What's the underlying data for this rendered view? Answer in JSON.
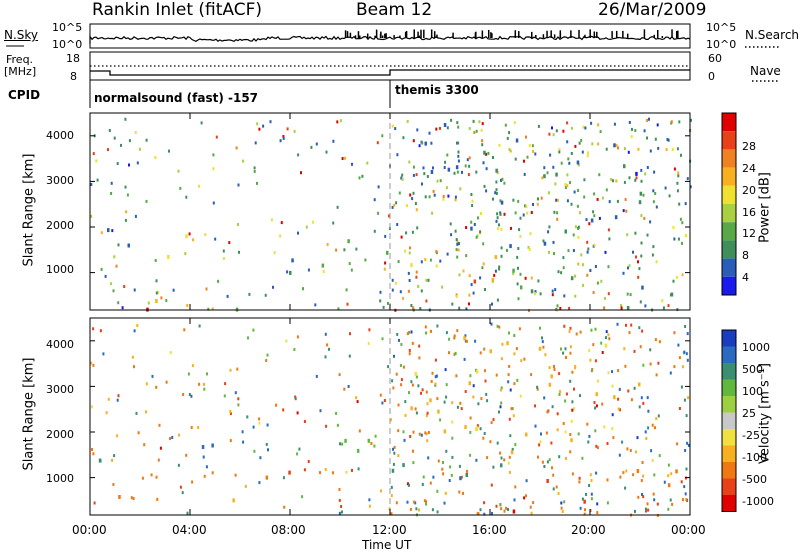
{
  "header": {
    "site": "Rankin Inlet (fitACF)",
    "beam": "Beam 12",
    "date": "26/Mar/2009"
  },
  "panels": {
    "nsky": {
      "left_label": "N.Sky",
      "right_label": "N.Search",
      "left_ticks": [
        "10^5",
        "10^0"
      ],
      "right_ticks": [
        "10^5",
        "10^0"
      ]
    },
    "freq": {
      "left_label_1": "Freq.",
      "left_label_2": "[MHz]",
      "right_label": "Nave",
      "left_ticks": [
        "18",
        "8"
      ],
      "right_ticks": [
        "60",
        "0"
      ]
    },
    "cpid": {
      "label": "CPID",
      "segments": [
        {
          "start": 0.0,
          "text": "normalsound (fast) -157"
        },
        {
          "start": 12.0,
          "text": "themis 3300"
        }
      ]
    }
  },
  "chart_data": [
    {
      "type": "heatmap",
      "title": "",
      "ylabel": "Slant Range [km]",
      "xlabel": "",
      "xlim": [
        0,
        24
      ],
      "ylim": [
        180,
        4500
      ],
      "y_ticks": [
        "1000",
        "2000",
        "3000",
        "4000"
      ],
      "colorbar": {
        "label": "Power [dB]",
        "ticks": [
          "4",
          "8",
          "12",
          "16",
          "20",
          "24",
          "28"
        ],
        "colors": [
          "#1a1aee",
          "#2a5db8",
          "#3f8f5a",
          "#58a848",
          "#a8d040",
          "#f0e030",
          "#f8b020",
          "#f08020",
          "#e84018",
          "#e00000"
        ]
      },
      "regions": [
        {
          "t": [
            0.0,
            0.6
          ],
          "r": [
            800,
            1500
          ],
          "v": 24
        },
        {
          "t": [
            0.0,
            0.3
          ],
          "r": [
            1900,
            2900
          ],
          "v": 9
        },
        {
          "t": [
            0.6,
            2.2
          ],
          "r": [
            900,
            2100
          ],
          "v": 7
        },
        {
          "t": [
            0.8,
            5.8
          ],
          "r": [
            200,
            700
          ],
          "v": 25
        },
        {
          "t": [
            2.3,
            3.4
          ],
          "r": [
            1200,
            2000
          ],
          "v": 18
        },
        {
          "t": [
            3.5,
            4.5
          ],
          "r": [
            1300,
            2000
          ],
          "v": 21
        },
        {
          "t": [
            4.0,
            5.0
          ],
          "r": [
            2200,
            2600
          ],
          "v": 8
        },
        {
          "t": [
            5.0,
            6.5
          ],
          "r": [
            200,
            1200
          ],
          "v": 10
        },
        {
          "t": [
            6.5,
            9.0
          ],
          "r": [
            700,
            1800
          ],
          "v": 9
        },
        {
          "t": [
            9.0,
            12.0
          ],
          "r": [
            800,
            1900
          ],
          "v": 12
        },
        {
          "t": [
            12.0,
            17.0
          ],
          "r": [
            600,
            1600
          ],
          "v": 18
        },
        {
          "t": [
            14.5,
            16.5
          ],
          "r": [
            400,
            1200
          ],
          "v": 23
        },
        {
          "t": [
            17.0,
            21.0
          ],
          "r": [
            500,
            1400
          ],
          "v": 10
        },
        {
          "t": [
            12.0,
            22.0
          ],
          "r": [
            1500,
            4300
          ],
          "v": 7
        },
        {
          "t": [
            20.0,
            24.0
          ],
          "r": [
            200,
            1200
          ],
          "v": 9
        }
      ]
    },
    {
      "type": "heatmap",
      "title": "",
      "ylabel": "Slant Range [km]",
      "xlabel": "Time UT",
      "xlim": [
        0,
        24
      ],
      "ylim": [
        180,
        4500
      ],
      "x_ticks": [
        "00:00",
        "04:00",
        "08:00",
        "12:00",
        "16:00",
        "20:00",
        "00:00"
      ],
      "y_ticks": [
        "1000",
        "2000",
        "3000",
        "4000"
      ],
      "colorbar": {
        "label": "Velocity [m s⁻¹]",
        "ticks": [
          "1000",
          "500",
          "100",
          "25",
          "-25",
          "-100",
          "-500",
          "-1000"
        ],
        "colors": [
          "#1a3dbf",
          "#2a6ac0",
          "#3a8f70",
          "#60b840",
          "#9cd040",
          "#c8c8c8",
          "#f0e040",
          "#f8b020",
          "#f07810",
          "#e84018",
          "#e00000"
        ]
      },
      "regions": [
        {
          "t": [
            0.0,
            0.6
          ],
          "r": [
            1200,
            2600
          ],
          "v": 300
        },
        {
          "t": [
            0.8,
            2.4
          ],
          "r": [
            200,
            700
          ],
          "v": -200
        },
        {
          "t": [
            2.2,
            5.0
          ],
          "r": [
            1300,
            2000
          ],
          "v": 700
        },
        {
          "t": [
            5.0,
            6.5
          ],
          "r": [
            200,
            1200
          ],
          "v": -100
        },
        {
          "t": [
            6.5,
            9.0
          ],
          "r": [
            500,
            1500
          ],
          "v": -300
        },
        {
          "t": [
            9.0,
            12.0
          ],
          "r": [
            800,
            1900
          ],
          "v": 200
        },
        {
          "t": [
            12.0,
            17.0
          ],
          "r": [
            600,
            1600
          ],
          "v": 300
        },
        {
          "t": [
            14.5,
            16.5
          ],
          "r": [
            800,
            1300
          ],
          "v": 800
        },
        {
          "t": [
            16.5,
            20.0
          ],
          "r": [
            300,
            1200
          ],
          "v": -400
        },
        {
          "t": [
            12.0,
            22.0
          ],
          "r": [
            1500,
            4300
          ],
          "v": -30
        },
        {
          "t": [
            20.0,
            24.0
          ],
          "r": [
            200,
            1200
          ],
          "v": -200
        }
      ]
    }
  ]
}
